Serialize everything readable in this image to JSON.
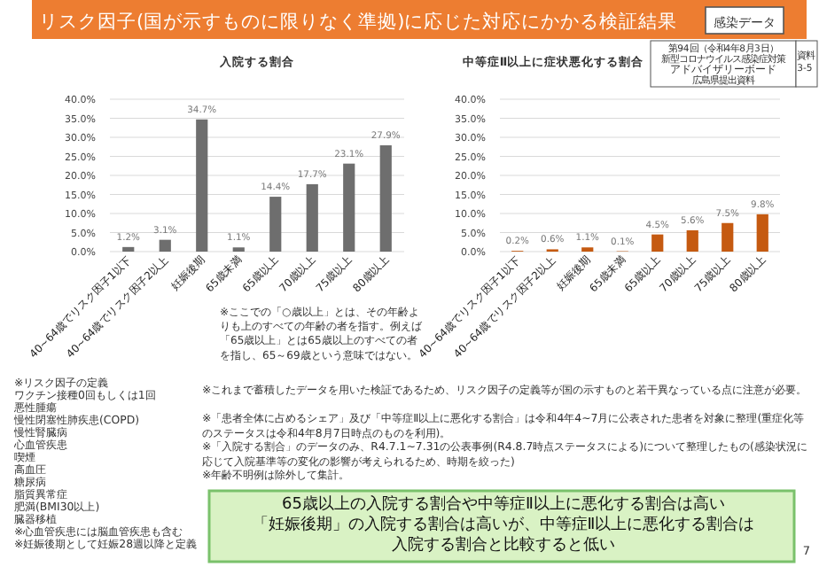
{
  "chart_data": [
    {
      "type": "other",
      "title": "リスク因子(国が示すものに限りなく準拠)に応じた対応にかかる検証結果",
      "annotations": [
        "感染データ",
        "第94回（令和4年8月3日）",
        "新型コロナウイルス感染症対策",
        "アドバイザリーボード",
        "広島県提出資料",
        "資料3-5",
        "※リスク因子の定義",
        "ワクチン接種0回もしくは1回",
        "悪性腫瘍",
        "慢性閉塞性肺疾患(COPD)",
        "慢性腎臓病",
        "心血管疾患",
        "喫煙",
        "高血圧",
        "糖尿病",
        "脂質異常症",
        "肥満(BMI30以上)",
        "臓器移植",
        "※心血管疾患には脳血管疾患も含む",
        "※妊娠後期として妊娠28週以降と定義",
        "※これまで蓄積したデータを用いた検証であるため、リスク因子の定義等が国の示すものと若干異なっている点に注意が必要。",
        "※「患者全体に占めるシェア」及び「中等症Ⅱ以上に悪化する割合」は令和4年4~7月に公表された患者を対象に整理(重症化等のステータスは令和4年8月7日時点のものを利用)。",
        "※「入院する割合」のデータのみ、R4.7.1~7.31の公表事例(R4.8.7時点ステータスによる)について整理したもの(感染状況に応じて入院基準等の変化の影響が考えられるため、時期を絞った)",
        "※年齢不明例は除外して集計。",
        "65歳以上の入院する割合や中等症Ⅱ以上に悪化する割合は高い",
        "「妊娠後期」の入院する割合は高いが、中等症Ⅱ以上に悪化する割合は",
        "入院する割合と比較すると低い",
        "7"
      ]
    },
    {
      "type": "bar",
      "title": "入院する割合",
      "categories": [
        "40~64歳でリスク因子1以下",
        "40~64歳でリスク因子2以上",
        "妊娠後期",
        "65歳未満",
        "65歳以上",
        "70歳以上",
        "75歳以上",
        "80歳以上"
      ],
      "values": [
        1.2,
        3.1,
        34.7,
        1.1,
        14.4,
        17.7,
        23.1,
        27.9
      ],
      "value_labels": [
        "1.2%",
        "3.1%",
        "34.7%",
        "1.1%",
        "14.4%",
        "17.7%",
        "23.1%",
        "27.9%"
      ],
      "color": "#6e6e6e",
      "ylim": [
        0,
        40
      ],
      "yticks": [
        {
          "value": 0,
          "label": "0.0%"
        },
        {
          "value": 5,
          "label": "5.0%"
        },
        {
          "value": 10,
          "label": "10.0%"
        },
        {
          "value": 15,
          "label": "15.0%"
        },
        {
          "value": 20,
          "label": "20.0%"
        },
        {
          "value": 25,
          "label": "25.0%"
        },
        {
          "value": 30,
          "label": "30.0%"
        },
        {
          "value": 35,
          "label": "35.0%"
        },
        {
          "value": 40,
          "label": "40.0%"
        }
      ],
      "grid": "y",
      "annotations": [
        "※ここでの「○歳以上」とは、その年齢よりも上のすべての年齢の者を指す。例えば「65歳以上」とは65歳以上のすべての者を指し、65～69歳という意味ではない。"
      ]
    },
    {
      "type": "bar",
      "title": "中等症Ⅱ以上に症状悪化する割合",
      "categories": [
        "40~64歳でリスク因子1以下",
        "40~64歳でリスク因子2以上",
        "妊娠後期",
        "65歳未満",
        "65歳以上",
        "70歳以上",
        "75歳以上",
        "80歳以上"
      ],
      "values": [
        0.2,
        0.6,
        1.1,
        0.1,
        4.5,
        5.6,
        7.5,
        9.8
      ],
      "value_labels": [
        "0.2%",
        "0.6%",
        "1.1%",
        "0.1%",
        "4.5%",
        "5.6%",
        "7.5%",
        "9.8%"
      ],
      "color": "#c55a11",
      "ylim": [
        0,
        40
      ],
      "yticks": [
        {
          "value": 0,
          "label": "0.0%"
        },
        {
          "value": 5,
          "label": "5.0%"
        },
        {
          "value": 10,
          "label": "10.0%"
        },
        {
          "value": 15,
          "label": "15.0%"
        },
        {
          "value": 20,
          "label": "20.0%"
        },
        {
          "value": 25,
          "label": "25.0%"
        },
        {
          "value": 30,
          "label": "30.0%"
        },
        {
          "value": 35,
          "label": "35.0%"
        },
        {
          "value": 40,
          "label": "40.0%"
        }
      ],
      "grid": "y"
    }
  ]
}
